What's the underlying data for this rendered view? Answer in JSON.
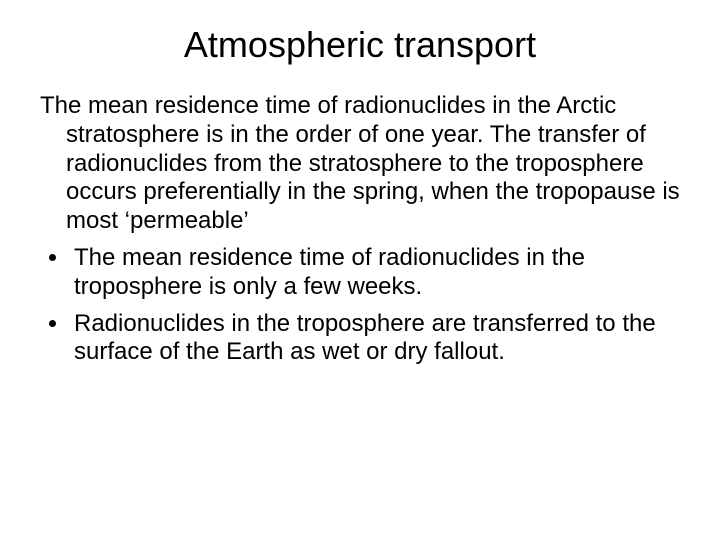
{
  "slide": {
    "title": "Atmospheric transport",
    "paragraph": "The mean residence time of radionuclides in the Arctic stratosphere is in the order of one year. The transfer of radionuclides from the stratosphere to the troposphere occurs preferentially in the spring, when the tropopause is most ‘permeable’",
    "bullets": [
      "The mean residence time of radionuclides in the troposphere is only a few weeks.",
      "Radionuclides in the troposphere are transferred to the surface of the Earth as wet or dry fallout."
    ],
    "colors": {
      "background": "#ffffff",
      "text": "#000000"
    },
    "typography": {
      "title_fontsize": 36,
      "body_fontsize": 24,
      "font_family": "Arial"
    }
  }
}
